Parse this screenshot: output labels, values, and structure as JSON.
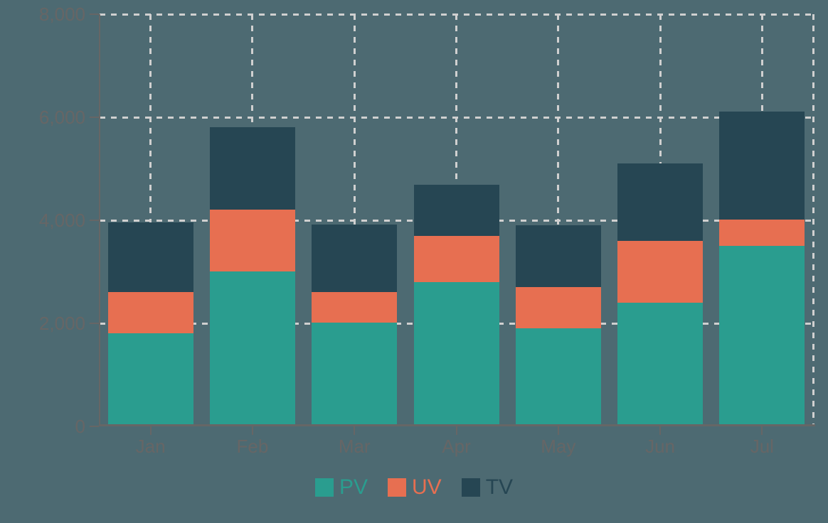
{
  "chart_data": {
    "type": "bar",
    "stacked": true,
    "title": "",
    "xlabel": "",
    "ylabel": "",
    "categories": [
      "Jan",
      "Feb",
      "Mar",
      "Apr",
      "May",
      "Jun",
      "Jul"
    ],
    "series": [
      {
        "name": "PV",
        "color": "#2a9d8f",
        "values": [
          1800,
          3000,
          2000,
          2780,
          1890,
          2390,
          3490
        ]
      },
      {
        "name": "UV",
        "color": "#e76f51",
        "values": [
          800,
          1200,
          600,
          900,
          800,
          1200,
          510
        ]
      },
      {
        "name": "TV",
        "color": "#264653",
        "values": [
          1350,
          1600,
          1300,
          1000,
          1200,
          1500,
          2100
        ]
      }
    ],
    "totals": [
      3950,
      5800,
      3900,
      4680,
      3890,
      5090,
      6100
    ],
    "ylim": [
      0,
      8000
    ],
    "ytick_values": [
      0,
      2000,
      4000,
      6000,
      8000
    ],
    "ytick_labels": [
      "0",
      "2,000",
      "4,000",
      "6,000",
      "8,000"
    ],
    "grid": "dashed",
    "grid_vertical": true,
    "legend_position": "bottom"
  },
  "canvas": {
    "background": "#4d6a72",
    "axis_color": "#666666",
    "tick_label_color": "#666666",
    "gridline_color": "#d0d0d0"
  }
}
